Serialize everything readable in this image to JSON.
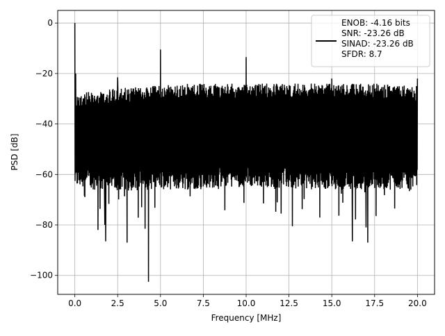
{
  "colors": {
    "background": "#ffffff",
    "trace": "#000000",
    "grid": "#b0b0b0",
    "axes": "#000000",
    "legend_border": "#cccccc"
  },
  "chart_data": {
    "type": "line",
    "title": "",
    "xlabel": "Frequency [MHz]",
    "ylabel": "PSD [dB]",
    "xlim": [
      -1.0,
      21.0
    ],
    "ylim": [
      -107.5,
      5.0
    ],
    "xticks": [
      0.0,
      2.5,
      5.0,
      7.5,
      10.0,
      12.5,
      15.0,
      17.5,
      20.0
    ],
    "xtick_labels": [
      "0.0",
      "2.5",
      "5.0",
      "7.5",
      "10.0",
      "12.5",
      "15.0",
      "17.5",
      "20.0"
    ],
    "yticks": [
      0,
      -20,
      -40,
      -60,
      -80,
      -100
    ],
    "ytick_labels": [
      "0",
      "−20",
      "−40",
      "−60",
      "−80",
      "−100"
    ],
    "grid": true,
    "legend_position": "top-right",
    "series": [
      {
        "name": "ENOB: -4.16 bits\nSNR: -23.26 dB\nSINAD: -23.26 dB\nSFDR: 8.7",
        "color": "#000000",
        "x_range": [
          0.0,
          20.0
        ],
        "noise_floor": {
          "upper_envelope_db": [
            -28,
            -26,
            -25,
            -24,
            -24,
            -24,
            -24,
            -24,
            -24,
            -25
          ],
          "lower_envelope_db": [
            -65,
            -67,
            -66,
            -66,
            -65,
            -65,
            -66,
            -66,
            -66,
            -66
          ],
          "typical_deep_nulls_db": [
            -70,
            -80
          ]
        },
        "peaks": [
          {
            "x": 0.0,
            "y": 0.0
          },
          {
            "x": 0.05,
            "y": -20.0
          },
          {
            "x": 2.5,
            "y": -21.5
          },
          {
            "x": 5.0,
            "y": -10.5
          },
          {
            "x": 10.0,
            "y": -13.5
          },
          {
            "x": 15.0,
            "y": -22.0
          },
          {
            "x": 20.0,
            "y": -22.0
          }
        ],
        "notches": [
          {
            "x": 4.3,
            "y": -102.5
          },
          {
            "x": 1.8,
            "y": -86.5
          },
          {
            "x": 3.05,
            "y": -87.0
          },
          {
            "x": 1.35,
            "y": -82.0
          },
          {
            "x": 4.1,
            "y": -81.5
          },
          {
            "x": 16.2,
            "y": -86.5
          },
          {
            "x": 17.1,
            "y": -87.0
          },
          {
            "x": 12.7,
            "y": -80.5
          },
          {
            "x": 17.0,
            "y": -81.0
          },
          {
            "x": 1.75,
            "y": -80.0
          }
        ]
      }
    ]
  }
}
